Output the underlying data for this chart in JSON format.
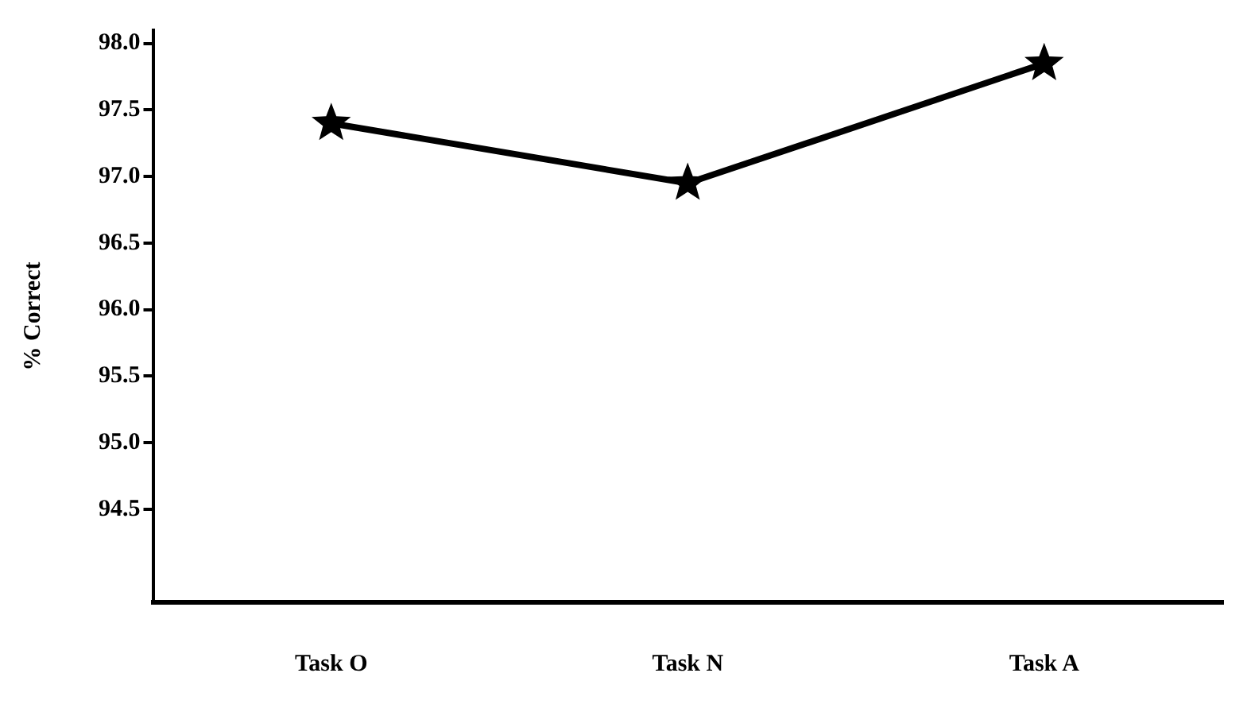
{
  "chart_data": {
    "type": "line",
    "ylabel": "% Correct",
    "categories": [
      "Task O",
      "Task N",
      "Task A"
    ],
    "series": [
      {
        "color": "#000000",
        "values": [
          97.4,
          96.95,
          97.85
        ]
      }
    ],
    "ylim": [
      93.8,
      98.1
    ],
    "yticks": [
      {
        "value": 94.5,
        "label": "94.5"
      },
      {
        "value": 95,
        "label": "95.0"
      },
      {
        "value": 95.5,
        "label": "95.5"
      },
      {
        "value": 96,
        "label": "96.0"
      },
      {
        "value": 96.5,
        "label": "96.5"
      },
      {
        "value": 97,
        "label": "97.0"
      },
      {
        "value": 97.5,
        "label": "97.5"
      },
      {
        "value": 98,
        "label": "98.0"
      }
    ],
    "grid": false,
    "legend": false,
    "marker": "star",
    "line_style": "solid"
  }
}
